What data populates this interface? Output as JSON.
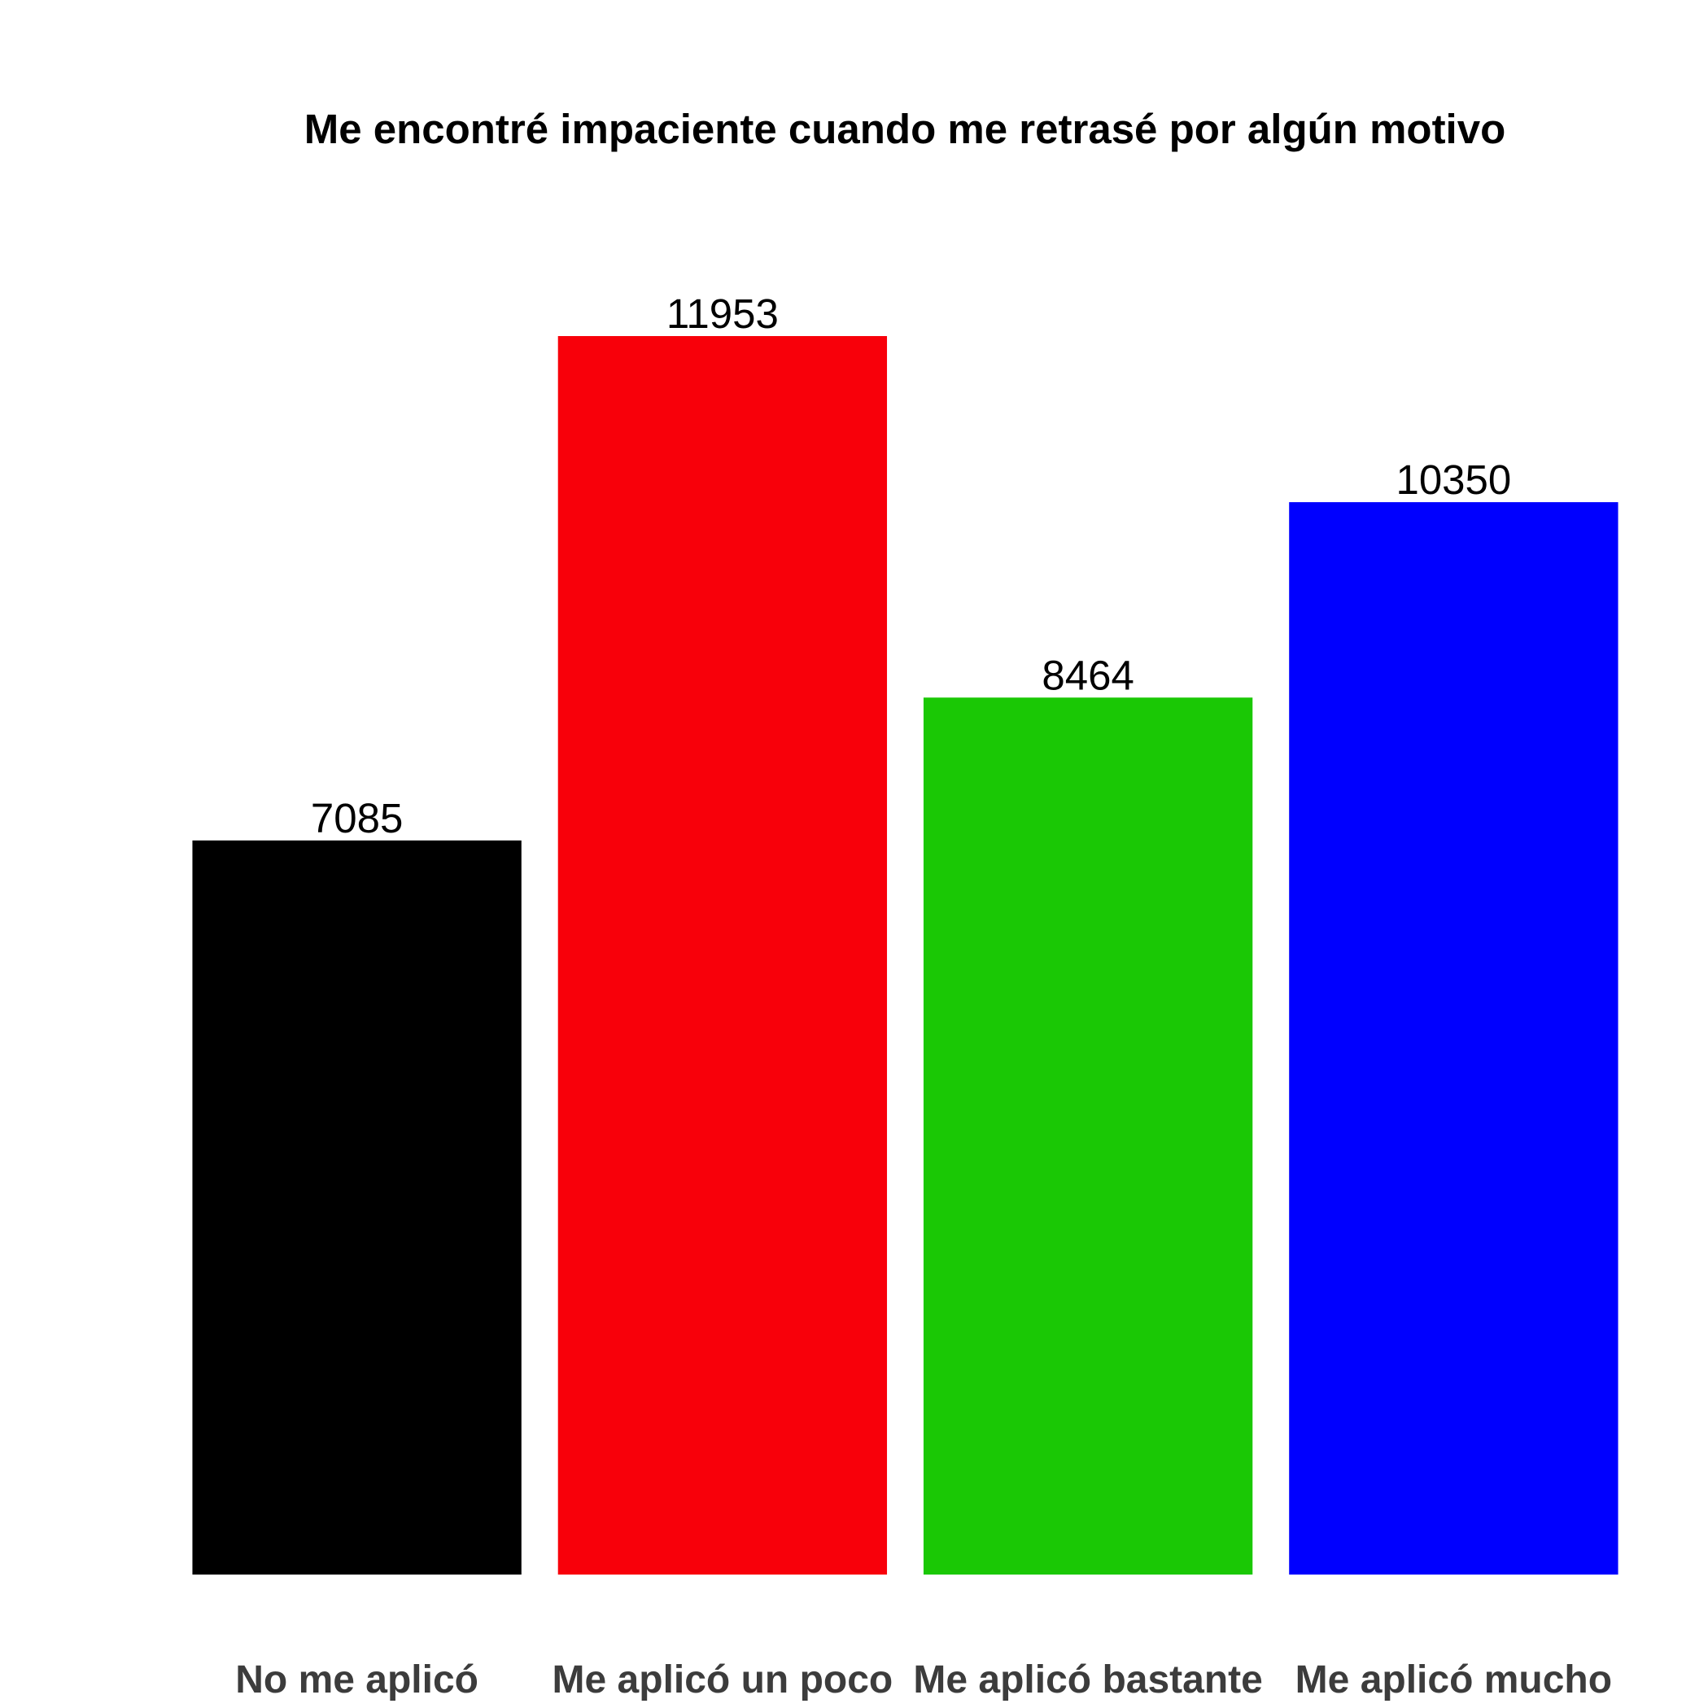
{
  "chart_data": {
    "type": "bar",
    "title": "Me encontré impaciente cuando me retrasé por algún motivo",
    "xlabel": "",
    "ylabel": "",
    "categories": [
      "No me aplicó",
      "Me aplicó un poco",
      "Me aplicó bastante",
      "Me aplicó mucho"
    ],
    "values": [
      7085,
      11953,
      8464,
      10350
    ],
    "colors": [
      "#000000",
      "#f8000a",
      "#1ac805",
      "#0000ff"
    ],
    "ylim": [
      0,
      11953
    ],
    "grid": false,
    "legend": "none",
    "value_labels": true
  }
}
